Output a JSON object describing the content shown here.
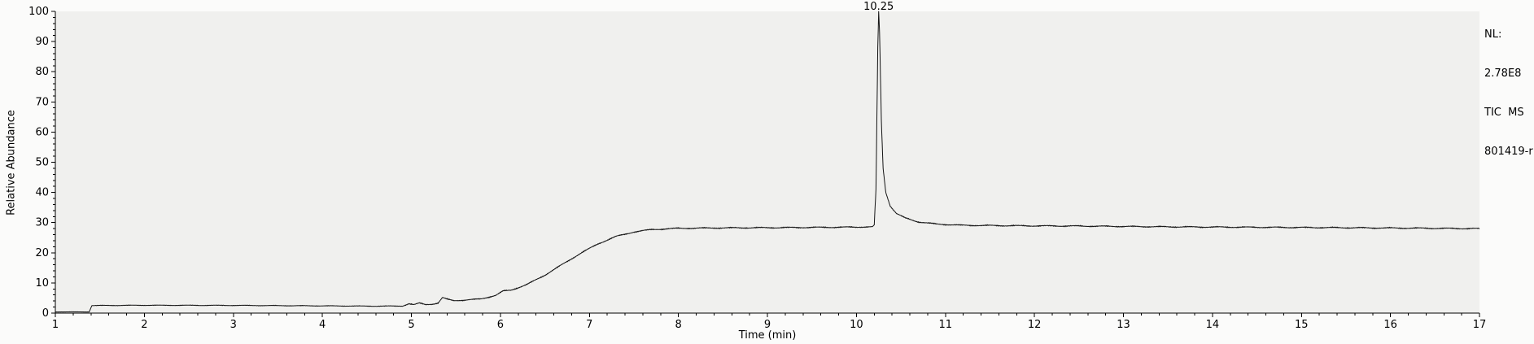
{
  "window": {
    "background": "#fbfbfa"
  },
  "chart_data": {
    "type": "line",
    "title": "",
    "xlabel": "Time (min)",
    "ylabel": "Relative Abundance",
    "xlim": [
      1,
      17
    ],
    "ylim": [
      0,
      100
    ],
    "grid": false,
    "plot_bg": "#f0f0ee",
    "line_color": "#141414",
    "x_major_ticks": [
      1,
      2,
      3,
      4,
      5,
      6,
      7,
      8,
      9,
      10,
      11,
      12,
      13,
      14,
      15,
      16,
      17
    ],
    "x_minor_step": 0.2,
    "y_major_ticks": [
      0,
      10,
      20,
      30,
      40,
      50,
      60,
      70,
      80,
      90,
      100
    ],
    "y_minor_step": 2,
    "annotations": [
      {
        "x": 10.25,
        "y": 100,
        "label": "10.25"
      }
    ],
    "header": {
      "lines": [
        "NL:",
        "2.78E8",
        "TIC  MS",
        "801419-r"
      ]
    },
    "series": [
      {
        "name": "TIC",
        "sample_step": 0.005,
        "noise_freqs": [
          1237.1,
          3317.7,
          7129.3,
          911.3
        ],
        "profile": [
          [
            1.0,
            0.4,
            0.05
          ],
          [
            1.38,
            0.4,
            0.05
          ],
          [
            1.41,
            2.5,
            0.15
          ],
          [
            2.0,
            2.6,
            0.15
          ],
          [
            3.0,
            2.55,
            0.15
          ],
          [
            4.0,
            2.4,
            0.15
          ],
          [
            4.6,
            2.3,
            0.15
          ],
          [
            4.9,
            2.35,
            0.2
          ],
          [
            4.97,
            3.1,
            0.3
          ],
          [
            5.03,
            2.75,
            0.3
          ],
          [
            5.09,
            3.3,
            0.3
          ],
          [
            5.16,
            2.85,
            0.25
          ],
          [
            5.24,
            3.0,
            0.25
          ],
          [
            5.3,
            3.3,
            0.3
          ],
          [
            5.35,
            5.1,
            0.3
          ],
          [
            5.4,
            4.6,
            0.3
          ],
          [
            5.48,
            4.15,
            0.25
          ],
          [
            5.6,
            4.3,
            0.25
          ],
          [
            5.78,
            4.7,
            0.28
          ],
          [
            5.95,
            5.9,
            0.3
          ],
          [
            6.03,
            7.3,
            0.3
          ],
          [
            6.12,
            7.6,
            0.3
          ],
          [
            6.3,
            9.5,
            0.3
          ],
          [
            6.5,
            12.6,
            0.3
          ],
          [
            6.7,
            16.2,
            0.3
          ],
          [
            6.9,
            19.8,
            0.3
          ],
          [
            7.1,
            23.0,
            0.3
          ],
          [
            7.3,
            25.4,
            0.3
          ],
          [
            7.5,
            26.9,
            0.3
          ],
          [
            7.7,
            27.7,
            0.3
          ],
          [
            8.0,
            28.1,
            0.3
          ],
          [
            8.5,
            28.25,
            0.3
          ],
          [
            9.0,
            28.3,
            0.3
          ],
          [
            9.5,
            28.4,
            0.3
          ],
          [
            10.0,
            28.5,
            0.3
          ],
          [
            10.18,
            28.6,
            0.2
          ],
          [
            10.2,
            29.2,
            0.1
          ],
          [
            10.22,
            41,
            0.1
          ],
          [
            10.24,
            88,
            0.05
          ],
          [
            10.25,
            100,
            0
          ],
          [
            10.26,
            93,
            0.05
          ],
          [
            10.28,
            64,
            0.1
          ],
          [
            10.3,
            48,
            0.1
          ],
          [
            10.33,
            40,
            0.15
          ],
          [
            10.38,
            35.5,
            0.2
          ],
          [
            10.45,
            33,
            0.25
          ],
          [
            10.55,
            31.5,
            0.28
          ],
          [
            10.7,
            30.2,
            0.3
          ],
          [
            10.9,
            29.5,
            0.3
          ],
          [
            11.2,
            29.1,
            0.3
          ],
          [
            11.8,
            28.95,
            0.3
          ],
          [
            12.5,
            28.85,
            0.3
          ],
          [
            13.5,
            28.6,
            0.3
          ],
          [
            14.5,
            28.45,
            0.3
          ],
          [
            15.5,
            28.3,
            0.3
          ],
          [
            16.3,
            28.15,
            0.3
          ],
          [
            17.0,
            28.0,
            0.3
          ]
        ]
      }
    ]
  }
}
